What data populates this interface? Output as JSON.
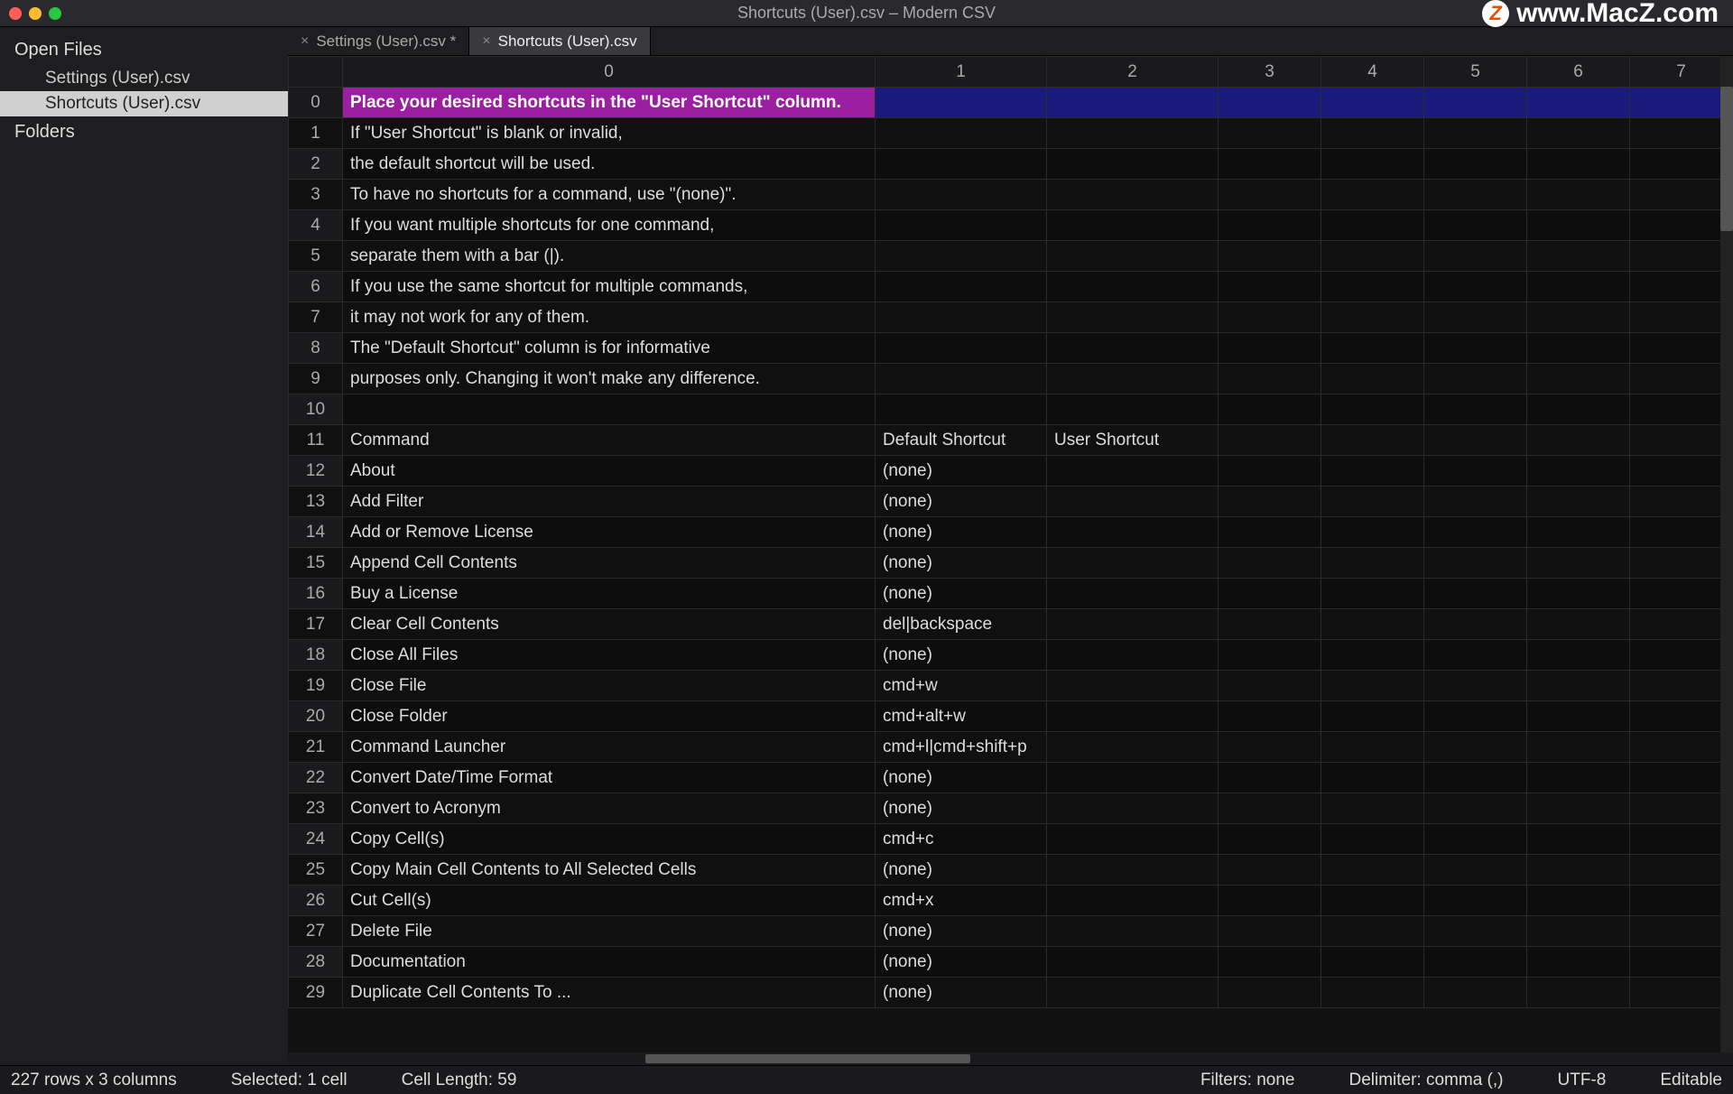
{
  "window": {
    "title": "Shortcuts (User).csv – Modern CSV"
  },
  "watermark": {
    "badge": "Z",
    "text": "www.MacZ.com"
  },
  "sidebar": {
    "sections": [
      {
        "label": "Open Files",
        "items": [
          {
            "label": "Settings (User).csv",
            "selected": false
          },
          {
            "label": "Shortcuts (User).csv",
            "selected": true
          }
        ]
      },
      {
        "label": "Folders",
        "items": []
      }
    ]
  },
  "tabs": [
    {
      "label": "Settings (User).csv *",
      "active": false
    },
    {
      "label": "Shortcuts (User).csv",
      "active": true
    }
  ],
  "grid": {
    "column_headers": [
      "0",
      "1",
      "2",
      "3",
      "4",
      "5",
      "6",
      "7"
    ],
    "rows": [
      {
        "n": 0,
        "c0": "Place your desired shortcuts in the \"User Shortcut\" column.",
        "c1": "",
        "c2": "",
        "selected": true
      },
      {
        "n": 1,
        "c0": "If \"User Shortcut\" is blank or invalid,",
        "c1": "",
        "c2": ""
      },
      {
        "n": 2,
        "c0": "the default shortcut will be used.",
        "c1": "",
        "c2": ""
      },
      {
        "n": 3,
        "c0": "To have no shortcuts for a command, use \"(none)\".",
        "c1": "",
        "c2": ""
      },
      {
        "n": 4,
        "c0": "If you want multiple shortcuts for one command,",
        "c1": "",
        "c2": ""
      },
      {
        "n": 5,
        "c0": "separate them with a bar (|).",
        "c1": "",
        "c2": ""
      },
      {
        "n": 6,
        "c0": "If you use the same shortcut for multiple commands,",
        "c1": "",
        "c2": ""
      },
      {
        "n": 7,
        "c0": "it may not work for any of them.",
        "c1": "",
        "c2": ""
      },
      {
        "n": 8,
        "c0": "The \"Default Shortcut\" column is for informative",
        "c1": "",
        "c2": ""
      },
      {
        "n": 9,
        "c0": "purposes only. Changing it won't make any difference.",
        "c1": "",
        "c2": ""
      },
      {
        "n": 10,
        "c0": "",
        "c1": "",
        "c2": ""
      },
      {
        "n": 11,
        "c0": "Command",
        "c1": "Default Shortcut",
        "c2": "User Shortcut"
      },
      {
        "n": 12,
        "c0": "About",
        "c1": "(none)",
        "c2": ""
      },
      {
        "n": 13,
        "c0": "Add Filter",
        "c1": "(none)",
        "c2": ""
      },
      {
        "n": 14,
        "c0": "Add or Remove License",
        "c1": "(none)",
        "c2": ""
      },
      {
        "n": 15,
        "c0": "Append Cell Contents",
        "c1": "(none)",
        "c2": ""
      },
      {
        "n": 16,
        "c0": "Buy a License",
        "c1": "(none)",
        "c2": ""
      },
      {
        "n": 17,
        "c0": "Clear Cell Contents",
        "c1": "del|backspace",
        "c2": ""
      },
      {
        "n": 18,
        "c0": "Close All Files",
        "c1": "(none)",
        "c2": ""
      },
      {
        "n": 19,
        "c0": "Close File",
        "c1": "cmd+w",
        "c2": ""
      },
      {
        "n": 20,
        "c0": "Close Folder",
        "c1": "cmd+alt+w",
        "c2": ""
      },
      {
        "n": 21,
        "c0": "Command Launcher",
        "c1": "cmd+l|cmd+shift+p",
        "c2": ""
      },
      {
        "n": 22,
        "c0": "Convert Date/Time Format",
        "c1": "(none)",
        "c2": ""
      },
      {
        "n": 23,
        "c0": "Convert to Acronym",
        "c1": "(none)",
        "c2": ""
      },
      {
        "n": 24,
        "c0": "Copy Cell(s)",
        "c1": "cmd+c",
        "c2": ""
      },
      {
        "n": 25,
        "c0": "Copy Main Cell Contents to All Selected Cells",
        "c1": "(none)",
        "c2": ""
      },
      {
        "n": 26,
        "c0": "Cut Cell(s)",
        "c1": "cmd+x",
        "c2": ""
      },
      {
        "n": 27,
        "c0": "Delete File",
        "c1": "(none)",
        "c2": ""
      },
      {
        "n": 28,
        "c0": "Documentation",
        "c1": "(none)",
        "c2": ""
      },
      {
        "n": 29,
        "c0": "Duplicate Cell Contents To ...",
        "c1": "(none)",
        "c2": ""
      }
    ]
  },
  "statusbar": {
    "dims": "227 rows x 3 columns",
    "selection": "Selected: 1 cell",
    "cell_len": "Cell Length: 59",
    "filters": "Filters: none",
    "delimiter": "Delimiter: comma (,)",
    "encoding": "UTF-8",
    "editable": "Editable"
  },
  "colors": {
    "selected_cell_bg": "#9b1fa0",
    "highlight_row_bg": "#1a1a7a"
  }
}
